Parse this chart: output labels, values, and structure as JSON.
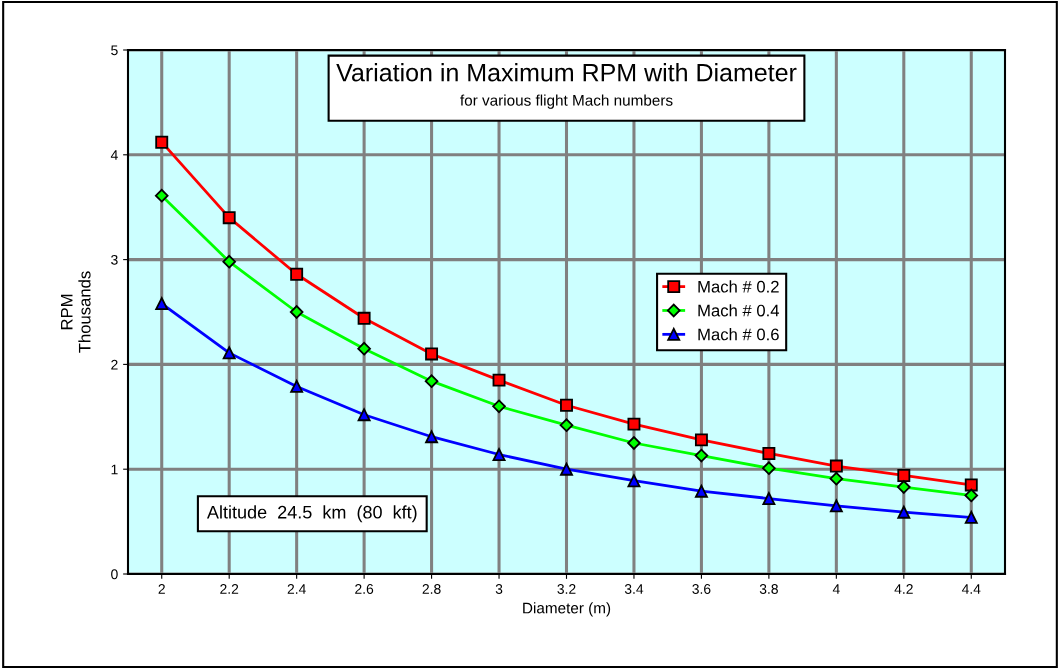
{
  "chart_data": {
    "type": "line",
    "title": "Variation in Maximum RPM with Diameter",
    "subtitle": "for various flight Mach numbers",
    "xlabel": "Diameter (m)",
    "ylabel": "RPM\nThousands",
    "x": [
      2,
      2.2,
      2.4,
      2.6,
      2.8,
      3,
      3.2,
      3.4,
      3.6,
      3.8,
      4,
      4.2,
      4.4
    ],
    "series": [
      {
        "name": "Mach # 0.2",
        "color": "#ff0000",
        "marker": "square",
        "values": [
          4.12,
          3.4,
          2.86,
          2.44,
          2.1,
          1.85,
          1.61,
          1.43,
          1.28,
          1.15,
          1.03,
          0.94,
          0.85
        ]
      },
      {
        "name": "Mach # 0.4",
        "color": "#00ff00",
        "marker": "diamond",
        "values": [
          3.61,
          2.98,
          2.5,
          2.15,
          1.84,
          1.6,
          1.42,
          1.25,
          1.13,
          1.01,
          0.91,
          0.83,
          0.75
        ]
      },
      {
        "name": "Mach # 0.6",
        "color": "#0000ff",
        "marker": "triangle",
        "values": [
          2.58,
          2.11,
          1.79,
          1.52,
          1.31,
          1.14,
          1.0,
          0.89,
          0.79,
          0.72,
          0.65,
          0.59,
          0.54
        ]
      }
    ],
    "xlim": [
      1.9,
      4.5
    ],
    "ylim": [
      0,
      5
    ],
    "xticks": [
      2,
      2.2,
      2.4,
      2.6,
      2.8,
      3,
      3.2,
      3.4,
      3.6,
      3.8,
      4,
      4.2,
      4.4
    ],
    "yticks": [
      0,
      1,
      2,
      3,
      4,
      5
    ],
    "grid": true,
    "legend": "right",
    "line_style": "solid",
    "annotations": [
      "Altitude  24.5  km  (80  kft)"
    ]
  }
}
